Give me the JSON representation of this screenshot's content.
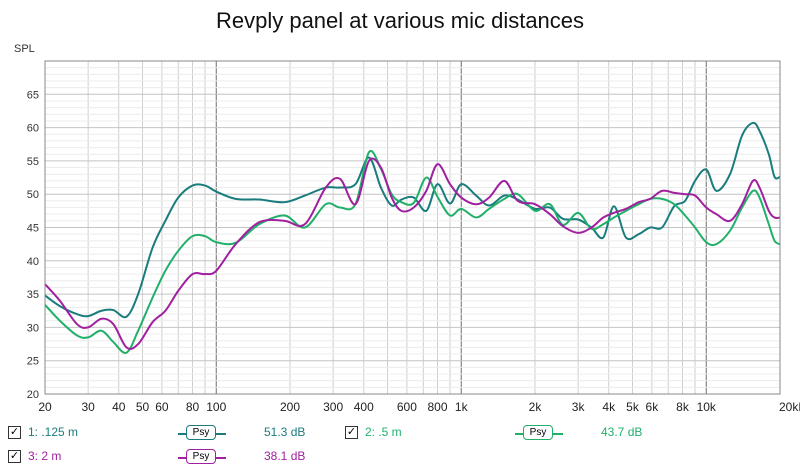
{
  "chart_data": {
    "type": "line",
    "title": "Revply panel at various mic distances",
    "ylabel": "SPL",
    "xscale": "log",
    "xlim": [
      20,
      20000
    ],
    "ylim": [
      20,
      70
    ],
    "grid": true,
    "xticks": [
      20,
      30,
      40,
      50,
      60,
      80,
      100,
      200,
      300,
      400,
      600,
      800,
      1000,
      2000,
      3000,
      4000,
      5000,
      6000,
      8000,
      10000,
      20000
    ],
    "xtick_labels": [
      "20",
      "30",
      "40",
      "50",
      "60",
      "80",
      "100",
      "200",
      "300",
      "400",
      "600",
      "800",
      "1k",
      "2k",
      "3k",
      "4k",
      "5k",
      "6k",
      "8k",
      "10k",
      "20kHz"
    ],
    "yticks": [
      20,
      25,
      30,
      35,
      40,
      45,
      50,
      55,
      60,
      65
    ],
    "series": [
      {
        "name": "1: .125 m",
        "color": "#1a7c7c",
        "x": [
          20,
          23,
          27,
          30,
          34,
          38,
          43,
          48,
          55,
          62,
          70,
          80,
          90,
          100,
          120,
          150,
          190,
          230,
          280,
          320,
          370,
          420,
          470,
          520,
          570,
          640,
          720,
          800,
          900,
          1000,
          1150,
          1300,
          1500,
          1700,
          2000,
          2300,
          2600,
          3000,
          3400,
          3800,
          4200,
          4700,
          5300,
          5900,
          6600,
          7400,
          8200,
          9000,
          10000,
          11000,
          12500,
          14000,
          15500,
          16500,
          18000,
          19000,
          20000
        ],
        "y": [
          34.8,
          33.2,
          32.0,
          31.7,
          32.5,
          32.6,
          31.6,
          35.0,
          42.0,
          46.0,
          49.5,
          51.3,
          51.3,
          50.4,
          49.3,
          49.2,
          48.8,
          49.8,
          51.0,
          51.0,
          51.5,
          55.5,
          51.0,
          48.3,
          49.2,
          49.5,
          47.5,
          51.5,
          48.6,
          51.5,
          49.8,
          48.3,
          49.8,
          49.2,
          47.8,
          48.0,
          46.3,
          46.2,
          45.0,
          43.5,
          48.2,
          43.5,
          44.0,
          45.0,
          45.0,
          48.2,
          49.0,
          52.0,
          53.7,
          50.5,
          53.0,
          58.8,
          60.7,
          59.5,
          56.0,
          52.6,
          52.6
        ]
      },
      {
        "name": "2: .5 m",
        "color": "#21b06a",
        "x": [
          20,
          23,
          27,
          30,
          34,
          38,
          43,
          48,
          55,
          62,
          70,
          80,
          90,
          100,
          120,
          150,
          190,
          230,
          280,
          320,
          370,
          420,
          470,
          520,
          570,
          640,
          720,
          800,
          900,
          1000,
          1150,
          1300,
          1500,
          1700,
          2000,
          2300,
          2600,
          3000,
          3400,
          3800,
          4200,
          4700,
          5300,
          5900,
          6600,
          7400,
          8200,
          9000,
          10000,
          11000,
          12500,
          14000,
          15500,
          16500,
          18000,
          19000,
          20000
        ],
        "y": [
          33.4,
          31.0,
          28.8,
          28.5,
          29.5,
          27.8,
          26.2,
          29.5,
          34.5,
          38.5,
          41.5,
          43.7,
          43.7,
          42.8,
          42.7,
          45.5,
          46.8,
          45.0,
          48.5,
          48.0,
          48.5,
          56.3,
          53.8,
          50.0,
          48.8,
          48.7,
          52.5,
          49.6,
          46.8,
          47.8,
          46.5,
          47.8,
          49.3,
          50.0,
          47.5,
          48.5,
          45.4,
          47.2,
          44.8,
          45.5,
          46.5,
          47.5,
          48.5,
          49.3,
          49.3,
          48.5,
          46.8,
          45.0,
          42.8,
          42.5,
          44.5,
          48.0,
          50.5,
          49.5,
          45.5,
          43.0,
          42.5
        ]
      },
      {
        "name": "3: 2 m",
        "color": "#a020a0",
        "x": [
          20,
          23,
          27,
          30,
          34,
          38,
          43,
          48,
          55,
          62,
          70,
          80,
          90,
          100,
          120,
          150,
          190,
          230,
          280,
          320,
          370,
          420,
          470,
          520,
          570,
          640,
          720,
          800,
          900,
          1000,
          1150,
          1300,
          1500,
          1700,
          2000,
          2300,
          2600,
          3000,
          3400,
          3800,
          4200,
          4700,
          5300,
          5900,
          6600,
          7400,
          8200,
          9000,
          10000,
          11000,
          12500,
          14000,
          15500,
          16500,
          18000,
          19000,
          20000
        ],
        "y": [
          36.5,
          34.0,
          30.5,
          30.0,
          31.3,
          30.5,
          27.0,
          27.5,
          30.8,
          32.5,
          35.5,
          38.0,
          38.0,
          38.5,
          42.5,
          45.8,
          46.0,
          45.5,
          51.0,
          52.3,
          48.5,
          55.0,
          54.0,
          49.5,
          47.5,
          48.0,
          50.5,
          54.5,
          51.5,
          49.5,
          48.5,
          49.5,
          52.0,
          49.0,
          48.5,
          47.0,
          45.2,
          44.2,
          45.0,
          46.5,
          47.2,
          47.8,
          48.8,
          49.3,
          50.5,
          50.2,
          50.0,
          49.8,
          48.0,
          47.0,
          46.0,
          48.5,
          52.0,
          51.0,
          47.5,
          46.5,
          46.5
        ]
      }
    ]
  },
  "legend": [
    {
      "check": "✓",
      "name": "1: .125 m",
      "psy": "Psy",
      "value": "51.3 dB",
      "color": "#1a7c7c"
    },
    {
      "check": "✓",
      "name": "2: .5 m",
      "psy": "Psy",
      "value": "43.7 dB",
      "color": "#21b06a"
    },
    {
      "check": "✓",
      "name": "3: 2 m",
      "psy": "Psy",
      "value": "38.1 dB",
      "color": "#a020a0"
    }
  ]
}
